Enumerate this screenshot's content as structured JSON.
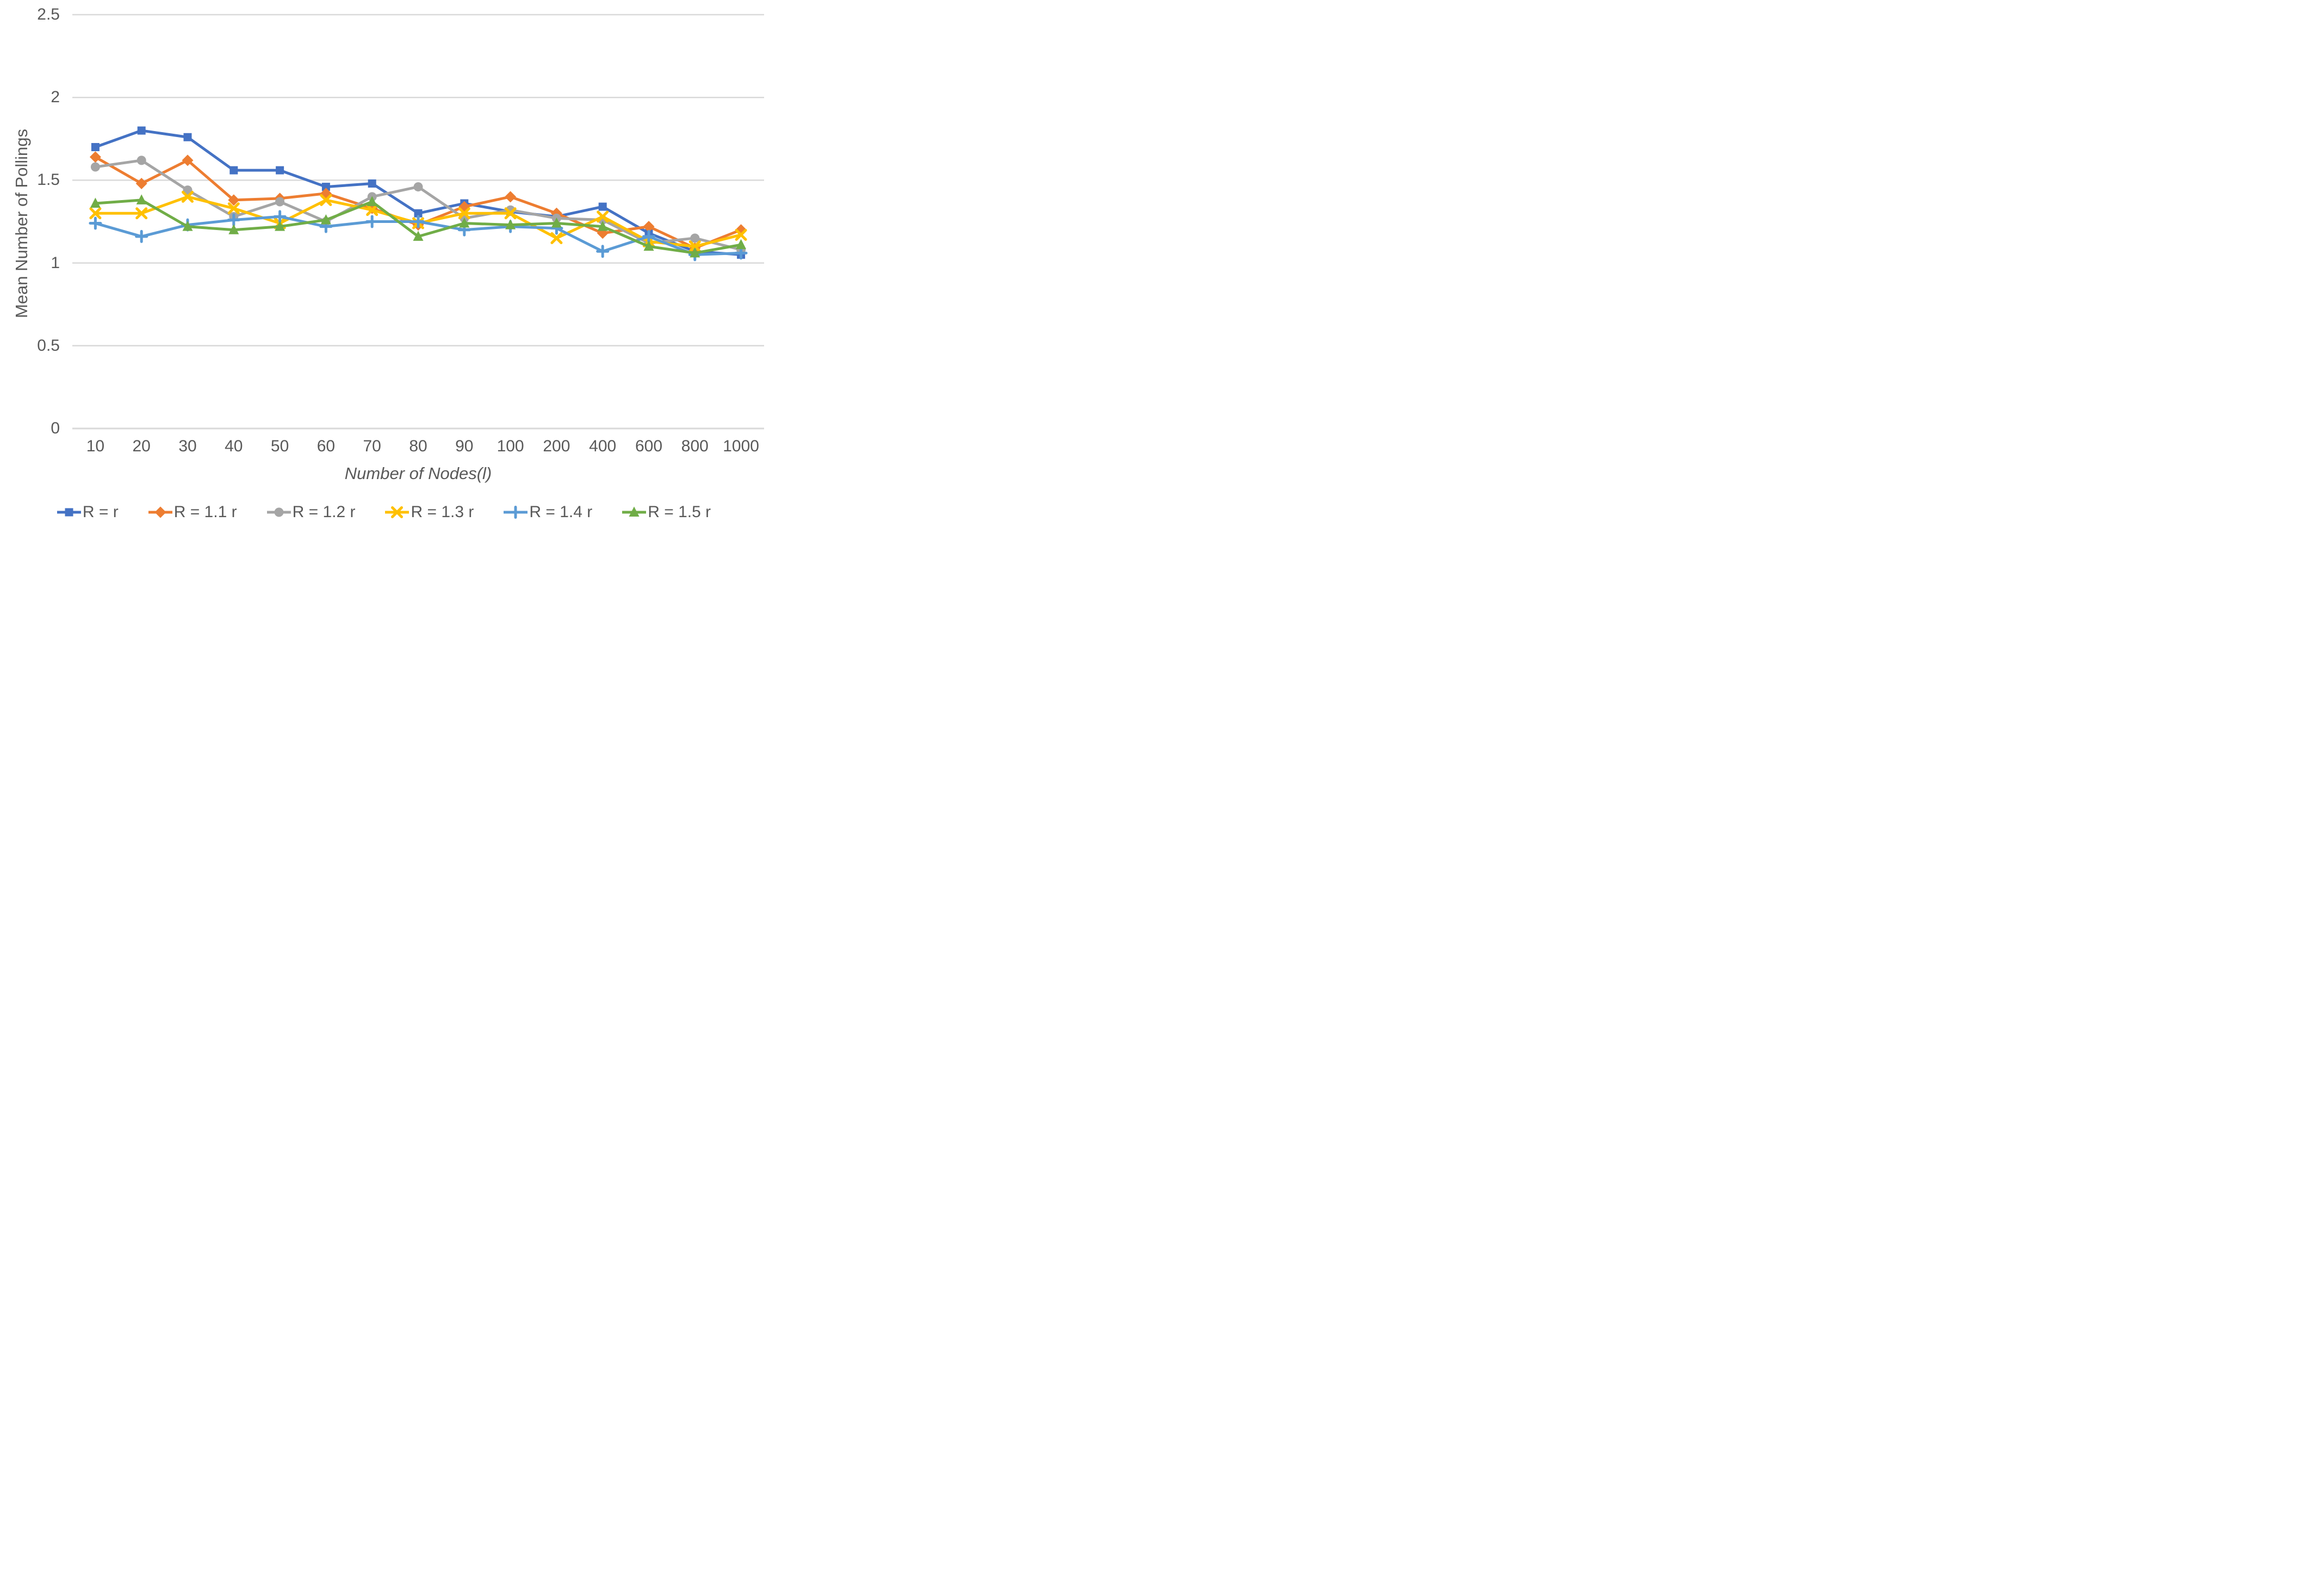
{
  "chart_data": {
    "type": "line",
    "title": "",
    "xlabel": "Number of Nodes(l)",
    "ylabel": "Mean Number of Pollings",
    "categories": [
      "10",
      "20",
      "30",
      "40",
      "50",
      "60",
      "70",
      "80",
      "90",
      "100",
      "200",
      "400",
      "600",
      "800",
      "1000"
    ],
    "y_ticks": [
      "0",
      "0.5",
      "1",
      "1.5",
      "2",
      "2.5"
    ],
    "y_tick_values": [
      0,
      0.5,
      1,
      1.5,
      2,
      2.5
    ],
    "ylim": [
      0,
      2.5
    ],
    "grid": true,
    "legend_position": "bottom",
    "series": [
      {
        "name": "R = r",
        "color": "#4472C4",
        "marker": "square",
        "values": [
          1.7,
          1.8,
          1.76,
          1.56,
          1.56,
          1.46,
          1.48,
          1.3,
          1.36,
          1.31,
          1.28,
          1.34,
          1.18,
          1.07,
          1.05
        ]
      },
      {
        "name": "R = 1.1 r",
        "color": "#ED7D31",
        "marker": "diamond",
        "values": [
          1.64,
          1.48,
          1.62,
          1.38,
          1.39,
          1.42,
          1.33,
          1.23,
          1.34,
          1.4,
          1.3,
          1.18,
          1.22,
          1.09,
          1.2
        ]
      },
      {
        "name": "R = 1.2 r",
        "color": "#A5A5A5",
        "marker": "circle",
        "values": [
          1.58,
          1.62,
          1.44,
          1.28,
          1.37,
          1.25,
          1.4,
          1.46,
          1.27,
          1.32,
          1.27,
          1.26,
          1.12,
          1.15,
          1.08
        ]
      },
      {
        "name": "R = 1.3 r",
        "color": "#FFC000",
        "marker": "x",
        "values": [
          1.3,
          1.3,
          1.4,
          1.33,
          1.24,
          1.38,
          1.32,
          1.24,
          1.3,
          1.3,
          1.15,
          1.28,
          1.13,
          1.1,
          1.17
        ]
      },
      {
        "name": "R = 1.4 r",
        "color": "#5B9BD5",
        "marker": "plus",
        "values": [
          1.24,
          1.16,
          1.23,
          1.26,
          1.28,
          1.22,
          1.25,
          1.25,
          1.2,
          1.22,
          1.21,
          1.07,
          1.16,
          1.05,
          1.06
        ]
      },
      {
        "name": "R = 1.5 r",
        "color": "#70AD47",
        "marker": "triangle",
        "values": [
          1.36,
          1.38,
          1.22,
          1.2,
          1.22,
          1.26,
          1.37,
          1.16,
          1.24,
          1.23,
          1.24,
          1.22,
          1.1,
          1.06,
          1.11
        ]
      }
    ]
  },
  "colors": {
    "text": "#595959",
    "gridline": "#D9D9D9",
    "background": "#FFFFFF"
  }
}
